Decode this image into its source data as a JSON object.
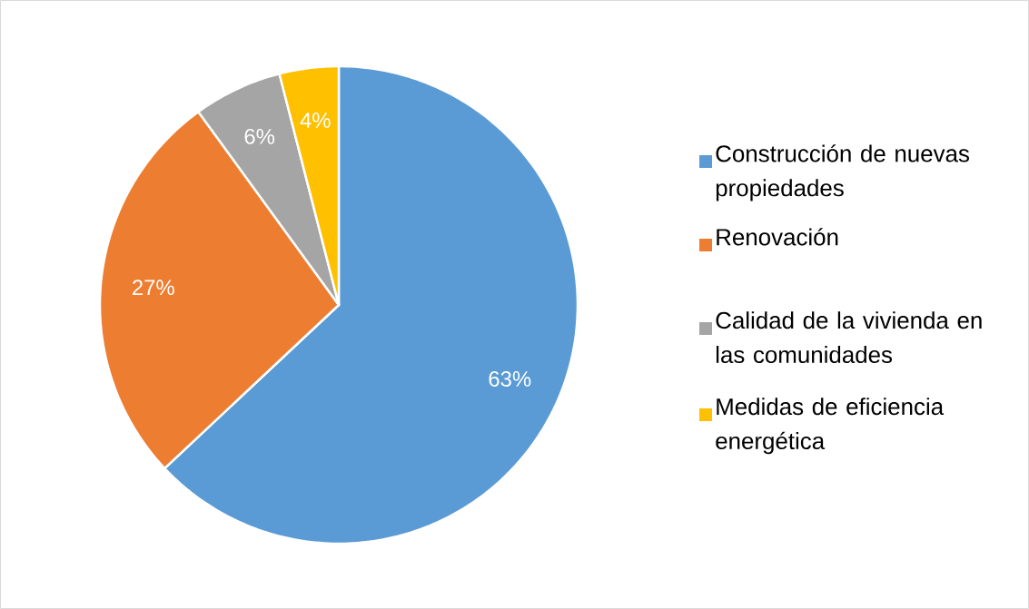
{
  "chart_data": {
    "type": "pie",
    "categories": [
      "Construcción de nuevas propiedades",
      "Renovación",
      "Calidad de la vivienda en las comunidades",
      "Medidas de eficiencia energética"
    ],
    "values": [
      63,
      27,
      6,
      4
    ],
    "colors": [
      "#5b9bd5",
      "#ed7d31",
      "#a5a5a5",
      "#ffc000"
    ],
    "value_labels": [
      "63%",
      "27%",
      "6%",
      "4%"
    ],
    "legend": "right"
  }
}
